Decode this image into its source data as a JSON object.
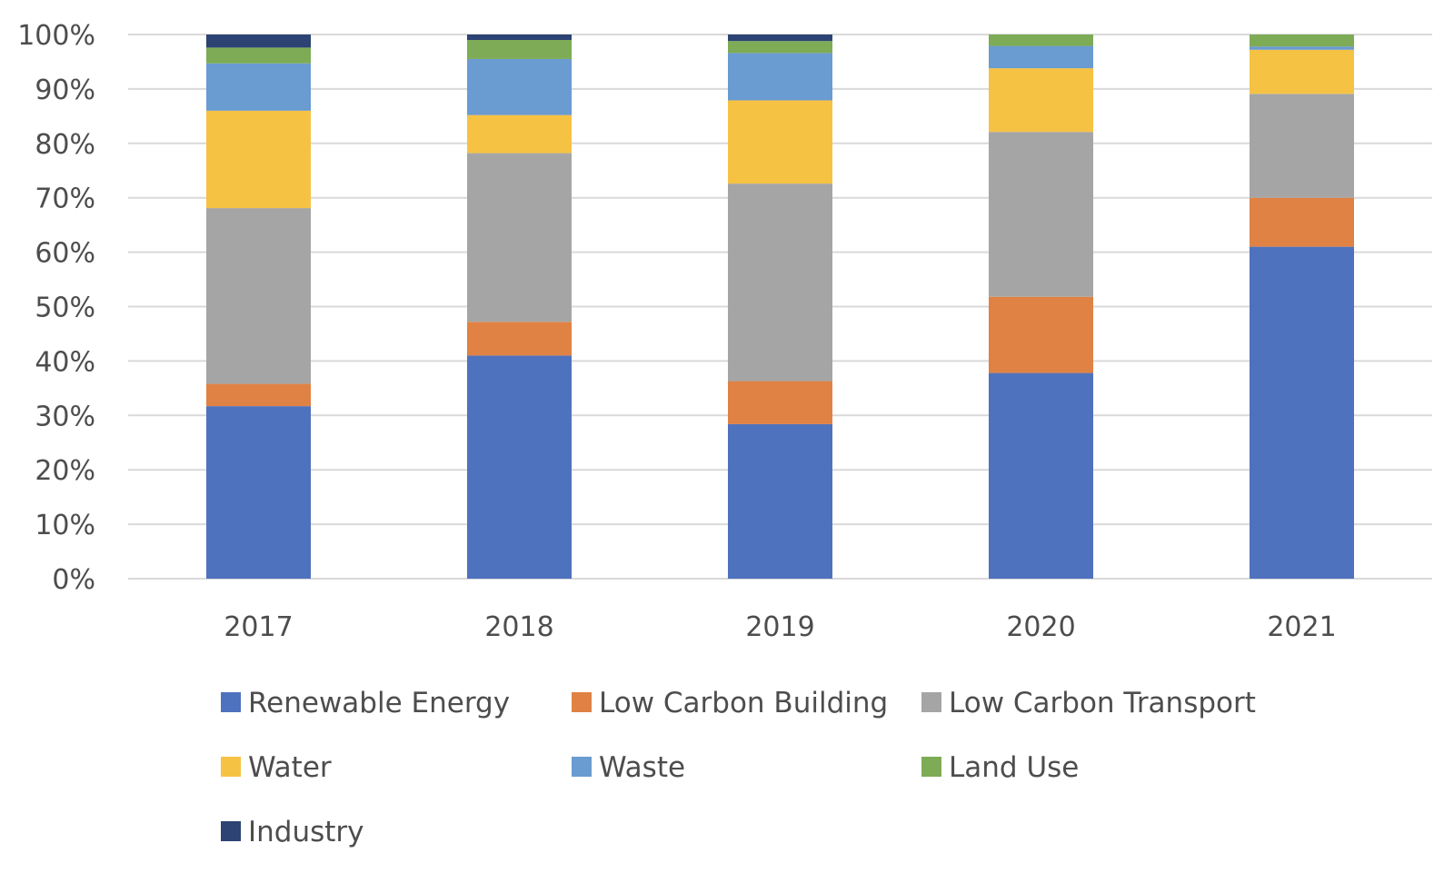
{
  "chart_data": {
    "type": "bar",
    "stacked": true,
    "percent_stacked": true,
    "categories": [
      "2017",
      "2018",
      "2019",
      "2020",
      "2021"
    ],
    "series": [
      {
        "name": "Renewable Energy",
        "color": "#4f72be",
        "values": [
          31.7,
          41.0,
          28.4,
          37.8,
          61.0
        ]
      },
      {
        "name": "Low Carbon Building",
        "color": "#df8244",
        "values": [
          4.1,
          6.2,
          7.9,
          14.0,
          9.0
        ]
      },
      {
        "name": "Low Carbon Transport",
        "color": "#a5a5a5",
        "values": [
          32.3,
          31.0,
          36.3,
          30.3,
          19.1
        ]
      },
      {
        "name": "Water",
        "color": "#f6c243",
        "values": [
          17.9,
          7.0,
          15.3,
          11.7,
          8.1
        ]
      },
      {
        "name": "Waste",
        "color": "#6a9bd1",
        "values": [
          8.7,
          10.3,
          8.7,
          4.1,
          0.6
        ]
      },
      {
        "name": "Land Use",
        "color": "#7eab55",
        "values": [
          2.9,
          3.5,
          2.2,
          2.1,
          2.2
        ]
      },
      {
        "name": "Industry",
        "color": "#2c4373",
        "values": [
          2.4,
          1.0,
          1.2,
          0.0,
          0.0
        ]
      }
    ],
    "yticks": [
      "0%",
      "10%",
      "20%",
      "30%",
      "40%",
      "50%",
      "60%",
      "70%",
      "80%",
      "90%",
      "100%"
    ],
    "ylim": [
      0,
      100
    ],
    "grid": true,
    "legend_position": "bottom",
    "title": "",
    "xlabel": "",
    "ylabel": ""
  }
}
